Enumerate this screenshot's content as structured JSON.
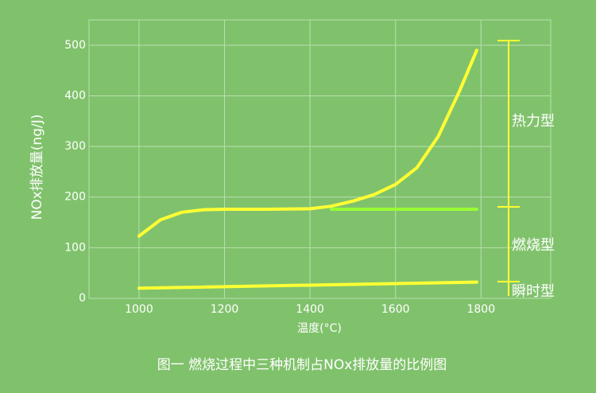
{
  "chart_data": {
    "type": "line",
    "caption": "图一    燃烧过程中三种机制占NOx排放量的比例图",
    "x_label": "温度(°C)",
    "y_label": "NOx排放量(ng/J)",
    "xlim": [
      883,
      1963
    ],
    "xticks": [
      1000,
      1200,
      1400,
      1600,
      1800
    ],
    "ylim": [
      0,
      550
    ],
    "yticks": [
      0,
      100,
      200,
      300,
      400,
      500
    ],
    "grid": true,
    "series": [
      {
        "color": "#ffff33",
        "x": [
          1000,
          1050,
          1100,
          1150,
          1200,
          1300,
          1400,
          1450,
          1500,
          1550,
          1600,
          1650,
          1700,
          1750,
          1790
        ],
        "values": [
          123,
          155,
          170,
          175,
          176,
          176,
          177,
          182,
          192,
          205,
          225,
          258,
          320,
          410,
          490
        ]
      },
      {
        "color": "#99ff33",
        "x": [
          1450,
          1790
        ],
        "values": [
          176,
          176
        ]
      },
      {
        "color": "#ffff33",
        "x": [
          1000,
          1790
        ],
        "values": [
          20,
          32
        ]
      }
    ],
    "annotations": [
      "热力型",
      "燃烧型",
      "瞬时型"
    ]
  }
}
